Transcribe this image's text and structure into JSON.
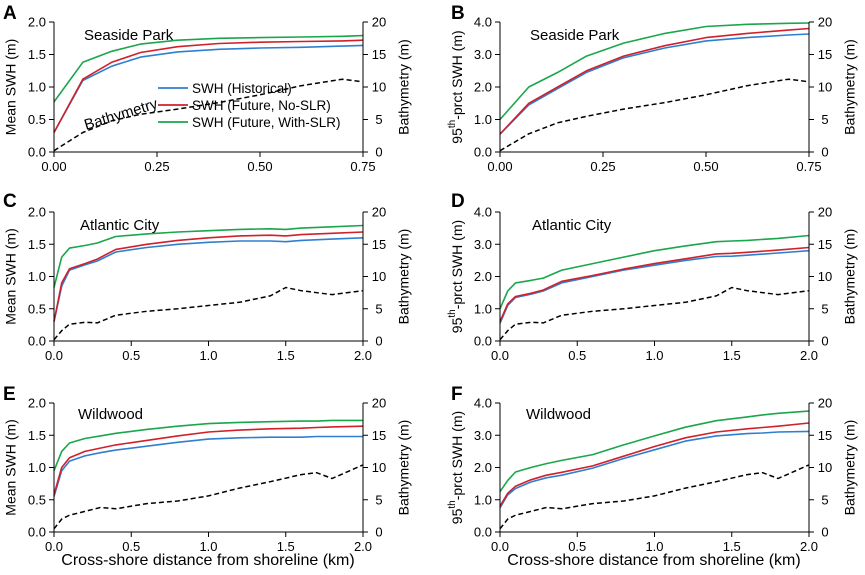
{
  "figure": {
    "xlabel_bottom": "Cross-shore distance from shoreline (km)",
    "legend": [
      {
        "label": "SWH (Historical)",
        "color": "#2f7fd1"
      },
      {
        "label": "SWH (Future, No-SLR)",
        "color": "#d0202a"
      },
      {
        "label": "SWH (Future, With-SLR)",
        "color": "#1aa64a"
      }
    ],
    "bathymetry_label": "Bathymetry"
  },
  "chart_data": [
    {
      "type": "line",
      "letter": "A",
      "site": "Seaside Park",
      "ylabel": "Mean SWH (m)",
      "y2label": "Bathymetry (m)",
      "xlim": [
        0,
        0.75
      ],
      "xticks": [
        "0.00",
        "0.25",
        "0.50",
        "0.75"
      ],
      "ylim": [
        0,
        2.0
      ],
      "yticks": [
        "0.0",
        "0.5",
        "1.0",
        "1.5",
        "2.0"
      ],
      "y2lim": [
        0,
        20
      ],
      "y2ticks": [
        "0",
        "5",
        "10",
        "15",
        "20"
      ],
      "x": [
        0,
        0.07,
        0.14,
        0.21,
        0.3,
        0.4,
        0.5,
        0.6,
        0.7,
        0.75
      ],
      "series": [
        {
          "name": "SWH (Historical)",
          "color": "#2f7fd1",
          "axis": "left",
          "values": [
            0.3,
            1.1,
            1.32,
            1.46,
            1.54,
            1.58,
            1.6,
            1.61,
            1.63,
            1.64
          ]
        },
        {
          "name": "SWH (Future, No-SLR)",
          "color": "#d0202a",
          "axis": "left",
          "values": [
            0.3,
            1.12,
            1.38,
            1.53,
            1.62,
            1.67,
            1.69,
            1.7,
            1.71,
            1.72
          ]
        },
        {
          "name": "SWH (Future, With-SLR)",
          "color": "#1aa64a",
          "axis": "left",
          "values": [
            0.77,
            1.38,
            1.55,
            1.66,
            1.72,
            1.75,
            1.76,
            1.77,
            1.78,
            1.79
          ]
        },
        {
          "name": "Bathymetry",
          "color": "#000000",
          "axis": "right",
          "dashed": true,
          "values": [
            0.2,
            3.0,
            4.8,
            5.8,
            6.6,
            7.6,
            8.8,
            10.2,
            11.2,
            10.8
          ]
        }
      ]
    },
    {
      "type": "line",
      "letter": "B",
      "site": "Seaside Park",
      "ylabel": "95th-prct SWH (m)",
      "y2label": "Bathymetry (m)",
      "xlim": [
        0,
        0.75
      ],
      "xticks": [
        "0.00",
        "0.25",
        "0.50",
        "0.75"
      ],
      "ylim": [
        0,
        4.0
      ],
      "yticks": [
        "0.0",
        "1.0",
        "2.0",
        "3.0",
        "4.0"
      ],
      "y2lim": [
        0,
        20
      ],
      "y2ticks": [
        "0",
        "5",
        "10",
        "15",
        "20"
      ],
      "x": [
        0,
        0.07,
        0.14,
        0.21,
        0.3,
        0.4,
        0.5,
        0.6,
        0.7,
        0.75
      ],
      "series": [
        {
          "name": "SWH (Historical)",
          "color": "#2f7fd1",
          "axis": "left",
          "values": [
            0.55,
            1.45,
            1.95,
            2.45,
            2.9,
            3.2,
            3.42,
            3.52,
            3.6,
            3.63
          ]
        },
        {
          "name": "SWH (Future, No-SLR)",
          "color": "#d0202a",
          "axis": "left",
          "values": [
            0.55,
            1.5,
            2.0,
            2.5,
            2.95,
            3.27,
            3.52,
            3.65,
            3.75,
            3.8
          ]
        },
        {
          "name": "SWH (Future, With-SLR)",
          "color": "#1aa64a",
          "axis": "left",
          "values": [
            1.0,
            2.0,
            2.45,
            2.95,
            3.35,
            3.65,
            3.86,
            3.93,
            3.96,
            3.97
          ]
        },
        {
          "name": "Bathymetry",
          "color": "#000000",
          "axis": "right",
          "dashed": true,
          "values": [
            0.2,
            2.8,
            4.5,
            5.5,
            6.6,
            7.6,
            8.8,
            10.2,
            11.2,
            10.8
          ]
        }
      ]
    },
    {
      "type": "line",
      "letter": "C",
      "site": "Atlantic City",
      "ylabel": "Mean SWH (m)",
      "y2label": "Bathymetry (m)",
      "xlim": [
        0,
        2.0
      ],
      "xticks": [
        "0.0",
        "0.5",
        "1.0",
        "1.5",
        "2.0"
      ],
      "ylim": [
        0,
        2.0
      ],
      "yticks": [
        "0.0",
        "0.5",
        "1.0",
        "1.5",
        "2.0"
      ],
      "y2lim": [
        0,
        20
      ],
      "y2ticks": [
        "0",
        "5",
        "10",
        "15",
        "20"
      ],
      "x": [
        0,
        0.05,
        0.1,
        0.2,
        0.28,
        0.4,
        0.6,
        0.8,
        1.0,
        1.2,
        1.4,
        1.5,
        1.6,
        1.8,
        2.0
      ],
      "series": [
        {
          "name": "SWH (Historical)",
          "color": "#2f7fd1",
          "axis": "left",
          "values": [
            0.3,
            0.85,
            1.1,
            1.18,
            1.24,
            1.38,
            1.45,
            1.5,
            1.53,
            1.55,
            1.55,
            1.54,
            1.56,
            1.58,
            1.6
          ]
        },
        {
          "name": "SWH (Future, No-SLR)",
          "color": "#d0202a",
          "axis": "left",
          "values": [
            0.3,
            0.9,
            1.12,
            1.2,
            1.27,
            1.42,
            1.5,
            1.56,
            1.6,
            1.63,
            1.64,
            1.63,
            1.65,
            1.67,
            1.69
          ]
        },
        {
          "name": "SWH (Future, With-SLR)",
          "color": "#1aa64a",
          "axis": "left",
          "values": [
            0.83,
            1.3,
            1.44,
            1.48,
            1.52,
            1.62,
            1.66,
            1.69,
            1.71,
            1.73,
            1.74,
            1.73,
            1.75,
            1.77,
            1.79
          ]
        },
        {
          "name": "Bathymetry",
          "color": "#000000",
          "axis": "right",
          "dashed": true,
          "values": [
            0.2,
            1.6,
            2.6,
            2.9,
            2.8,
            4.0,
            4.6,
            5.0,
            5.5,
            6.0,
            7.0,
            8.3,
            7.8,
            7.2,
            7.8
          ]
        }
      ]
    },
    {
      "type": "line",
      "letter": "D",
      "site": "Atlantic City",
      "ylabel": "95th-prct SWH (m)",
      "y2label": "Bathymetry (m)",
      "xlim": [
        0,
        2.0
      ],
      "xticks": [
        "0.0",
        "0.5",
        "1.0",
        "1.5",
        "2.0"
      ],
      "ylim": [
        0,
        4.0
      ],
      "yticks": [
        "0.0",
        "1.0",
        "2.0",
        "3.0",
        "4.0"
      ],
      "y2lim": [
        0,
        20
      ],
      "y2ticks": [
        "0",
        "5",
        "10",
        "15",
        "20"
      ],
      "x": [
        0,
        0.05,
        0.1,
        0.2,
        0.28,
        0.4,
        0.6,
        0.8,
        1.0,
        1.2,
        1.4,
        1.5,
        1.6,
        1.8,
        2.0
      ],
      "series": [
        {
          "name": "SWH (Historical)",
          "color": "#2f7fd1",
          "axis": "left",
          "values": [
            0.55,
            1.1,
            1.35,
            1.45,
            1.55,
            1.8,
            2.0,
            2.2,
            2.35,
            2.5,
            2.62,
            2.63,
            2.66,
            2.73,
            2.8
          ]
        },
        {
          "name": "SWH (Future, No-SLR)",
          "color": "#d0202a",
          "axis": "left",
          "values": [
            0.6,
            1.15,
            1.38,
            1.48,
            1.58,
            1.85,
            2.03,
            2.23,
            2.4,
            2.55,
            2.7,
            2.72,
            2.75,
            2.82,
            2.9
          ]
        },
        {
          "name": "SWH (Future, With-SLR)",
          "color": "#1aa64a",
          "axis": "left",
          "values": [
            1.0,
            1.55,
            1.8,
            1.88,
            1.95,
            2.2,
            2.4,
            2.6,
            2.8,
            2.95,
            3.08,
            3.1,
            3.12,
            3.18,
            3.27
          ]
        },
        {
          "name": "Bathymetry",
          "color": "#000000",
          "axis": "right",
          "dashed": true,
          "values": [
            0.2,
            1.6,
            2.6,
            2.9,
            2.8,
            4.0,
            4.6,
            5.0,
            5.5,
            6.0,
            7.0,
            8.3,
            7.8,
            7.2,
            7.8
          ]
        }
      ]
    },
    {
      "type": "line",
      "letter": "E",
      "site": "Wildwood",
      "ylabel": "Mean SWH (m)",
      "y2label": "Bathymetry (m)",
      "xlim": [
        0,
        2.0
      ],
      "xticks": [
        "0.0",
        "0.5",
        "1.0",
        "1.5",
        "2.0"
      ],
      "ylim": [
        0,
        2.0
      ],
      "yticks": [
        "0.0",
        "0.5",
        "1.0",
        "1.5",
        "2.0"
      ],
      "y2lim": [
        0,
        20
      ],
      "y2ticks": [
        "0",
        "5",
        "10",
        "15",
        "20"
      ],
      "x": [
        0,
        0.05,
        0.1,
        0.2,
        0.3,
        0.4,
        0.6,
        0.8,
        1.0,
        1.2,
        1.4,
        1.6,
        1.7,
        1.8,
        2.0
      ],
      "series": [
        {
          "name": "SWH (Historical)",
          "color": "#2f7fd1",
          "axis": "left",
          "values": [
            0.55,
            0.95,
            1.1,
            1.18,
            1.23,
            1.27,
            1.33,
            1.39,
            1.44,
            1.46,
            1.47,
            1.47,
            1.48,
            1.48,
            1.48
          ]
        },
        {
          "name": "SWH (Future, No-SLR)",
          "color": "#d0202a",
          "axis": "left",
          "values": [
            0.58,
            1.0,
            1.15,
            1.25,
            1.3,
            1.35,
            1.42,
            1.49,
            1.55,
            1.58,
            1.6,
            1.61,
            1.62,
            1.63,
            1.64
          ]
        },
        {
          "name": "SWH (Future, With-SLR)",
          "color": "#1aa64a",
          "axis": "left",
          "values": [
            0.95,
            1.25,
            1.38,
            1.45,
            1.49,
            1.53,
            1.59,
            1.64,
            1.68,
            1.7,
            1.71,
            1.72,
            1.72,
            1.73,
            1.73
          ]
        },
        {
          "name": "Bathymetry",
          "color": "#000000",
          "axis": "right",
          "dashed": true,
          "values": [
            0.5,
            2.0,
            2.6,
            3.2,
            3.8,
            3.6,
            4.4,
            4.8,
            5.6,
            6.8,
            7.8,
            8.9,
            9.2,
            8.3,
            10.4
          ]
        }
      ]
    },
    {
      "type": "line",
      "letter": "F",
      "site": "Wildwood",
      "ylabel": "95th-prct SWH (m)",
      "y2label": "Bathymetry (m)",
      "xlim": [
        0,
        2.0
      ],
      "xticks": [
        "0.0",
        "0.5",
        "1.0",
        "1.5",
        "2.0"
      ],
      "ylim": [
        0,
        4.0
      ],
      "yticks": [
        "0.0",
        "1.0",
        "2.0",
        "3.0",
        "4.0"
      ],
      "y2lim": [
        0,
        20
      ],
      "y2ticks": [
        "0",
        "5",
        "10",
        "15",
        "20"
      ],
      "x": [
        0,
        0.05,
        0.1,
        0.2,
        0.3,
        0.4,
        0.6,
        0.8,
        1.0,
        1.2,
        1.4,
        1.6,
        1.7,
        1.8,
        2.0
      ],
      "series": [
        {
          "name": "SWH (Historical)",
          "color": "#2f7fd1",
          "axis": "left",
          "values": [
            0.75,
            1.15,
            1.35,
            1.55,
            1.68,
            1.76,
            1.98,
            2.28,
            2.55,
            2.82,
            2.98,
            3.05,
            3.07,
            3.1,
            3.12
          ]
        },
        {
          "name": "SWH (Future, No-SLR)",
          "color": "#d0202a",
          "axis": "left",
          "values": [
            0.8,
            1.2,
            1.42,
            1.62,
            1.76,
            1.85,
            2.05,
            2.35,
            2.65,
            2.92,
            3.1,
            3.2,
            3.24,
            3.28,
            3.38
          ]
        },
        {
          "name": "SWH (Future, With-SLR)",
          "color": "#1aa64a",
          "axis": "left",
          "values": [
            1.25,
            1.6,
            1.86,
            2.0,
            2.12,
            2.22,
            2.4,
            2.7,
            2.98,
            3.25,
            3.45,
            3.57,
            3.63,
            3.68,
            3.75
          ]
        },
        {
          "name": "Bathymetry",
          "color": "#000000",
          "axis": "right",
          "dashed": true,
          "values": [
            0.5,
            2.0,
            2.6,
            3.2,
            3.8,
            3.6,
            4.4,
            4.8,
            5.6,
            6.8,
            7.8,
            8.9,
            9.2,
            8.3,
            10.4
          ]
        }
      ]
    }
  ]
}
